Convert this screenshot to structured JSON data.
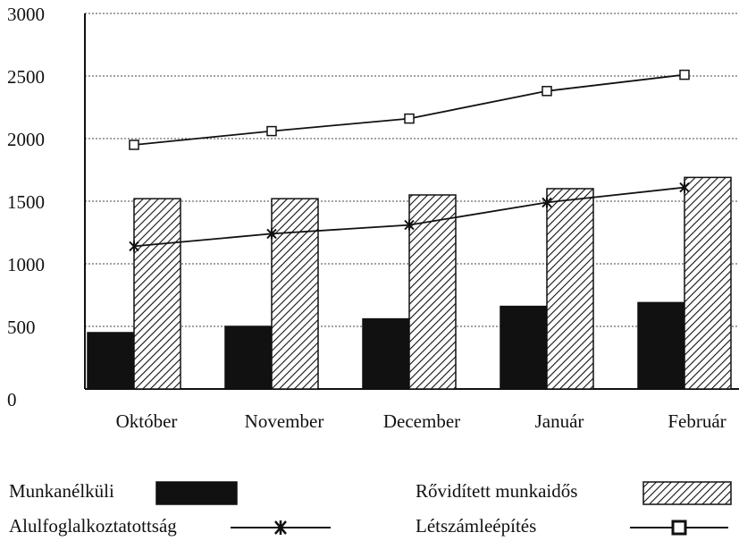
{
  "chart_data": {
    "type": "bar_line",
    "categories": [
      "Október",
      "November",
      "December",
      "Január",
      "Február"
    ],
    "series": [
      {
        "name": "Munkanélküli",
        "type": "bar",
        "color": "#111111",
        "values": [
          450,
          500,
          560,
          660,
          690
        ]
      },
      {
        "name": "Rővidített munkaidős",
        "type": "bar",
        "color": "#111111",
        "pattern": "hatch",
        "values": [
          1520,
          1520,
          1550,
          1600,
          1690
        ]
      },
      {
        "name": "Alulfoglalkoztatottság",
        "type": "line",
        "color": "#111111",
        "marker": "x",
        "values": [
          1140,
          1240,
          1310,
          1490,
          1610
        ]
      },
      {
        "name": "Létszámleépítés",
        "type": "line",
        "color": "#111111",
        "marker": "square",
        "values": [
          1950,
          2060,
          2160,
          2380,
          2510
        ]
      }
    ],
    "ylim": [
      0,
      3000
    ],
    "yticks": [
      0,
      500,
      1000,
      1500,
      2000,
      2500,
      3000
    ],
    "grid": true
  }
}
